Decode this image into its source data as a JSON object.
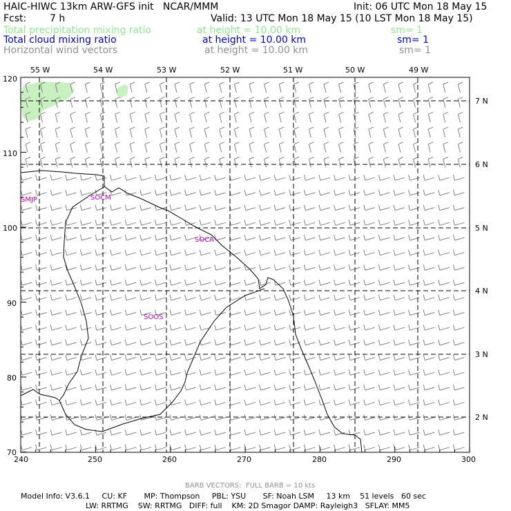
{
  "header": {
    "title": "HAIC-HIWC 13km ARW-GFS init   NCAR/MMM",
    "init": "Init: 06 UTC Mon 18 May 15",
    "fcst_label": "Fcst:",
    "fcst_value": "7 h",
    "valid": "Valid: 13 UTC Mon 18 May 15 (10 LST Mon 18 May 15)"
  },
  "fields": [
    {
      "name": "Total precipitation mixing ratio",
      "height": "at height = 10.00 km",
      "sm": "sm= 1",
      "color": "#8fe88f"
    },
    {
      "name": "Total cloud mixing ratio",
      "height": "at height = 10.00 km",
      "sm": "sm= 1",
      "color": "#0000c8"
    },
    {
      "name": "Horizontal wind vectors",
      "height": "at height = 10.00 km",
      "sm": "sm= 1",
      "color": "#909090"
    }
  ],
  "map": {
    "x_ticks": [
      "240",
      "250",
      "260",
      "270",
      "280",
      "290",
      "300"
    ],
    "y_ticks": [
      "70",
      "80",
      "90",
      "100",
      "110",
      "120"
    ],
    "lon_labels": [
      "55 W",
      "54 W",
      "53 W",
      "52 W",
      "51 W",
      "50 W",
      "49 W"
    ],
    "lat_labels": [
      "7 N",
      "6 N",
      "5 N",
      "4 N",
      "3 N",
      "2 N"
    ],
    "stations": [
      "SMJP",
      "SOCM",
      "SOCA",
      "SOOS"
    ],
    "precip_color": "#c8f0c0",
    "station_color": "#c000c0"
  },
  "footer": {
    "barb": "BARB VECTORS:  FULL BARB = 10 kts",
    "line1": "Model Info: V3.6.1     CU: KF       MP: Thompson     PBL: YSU       SF: Noah LSM     13 km    51 levels   60 sec",
    "line2": "LW: RRTMG    SW: RRTMG   DIFF: full    KM: 2D Smagor DAMP: Rayleigh3   SFLAY: MM5"
  }
}
